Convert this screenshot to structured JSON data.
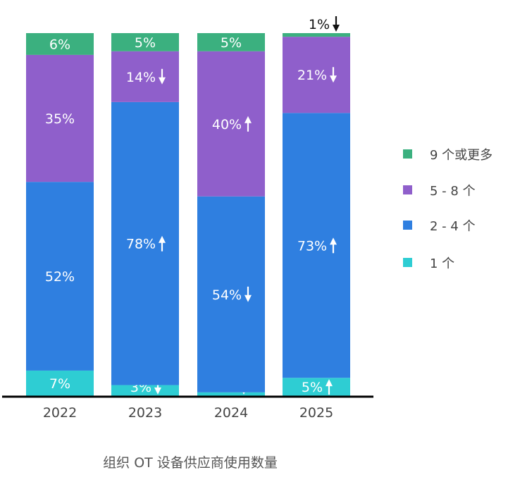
{
  "chart_data": {
    "type": "bar",
    "stacked": true,
    "title": "",
    "xlabel": "组织 OT 设备供应商使用数量",
    "ylabel": "",
    "ylim": [
      0,
      100
    ],
    "grid": false,
    "legend_position": "right",
    "categories": [
      "2022",
      "2023",
      "2024",
      "2025"
    ],
    "series": [
      {
        "name": "1 个",
        "color": "#2ecdd3",
        "values": [
          7,
          3,
          1,
          5
        ],
        "trend": [
          "",
          "down",
          "down",
          "up"
        ]
      },
      {
        "name": "2 - 4 个",
        "color": "#2f7fe0",
        "values": [
          52,
          78,
          54,
          73
        ],
        "trend": [
          "",
          "up",
          "down",
          "up"
        ]
      },
      {
        "name": "5 - 8 个",
        "color": "#8f5fcb",
        "values": [
          35,
          14,
          40,
          21
        ],
        "trend": [
          "",
          "down",
          "up",
          "down"
        ]
      },
      {
        "name": "9 个或更多",
        "color": "#3bb07f",
        "values": [
          6,
          5,
          5,
          1
        ],
        "trend": [
          "",
          "",
          "",
          "down"
        ]
      }
    ],
    "value_suffix": "%"
  }
}
